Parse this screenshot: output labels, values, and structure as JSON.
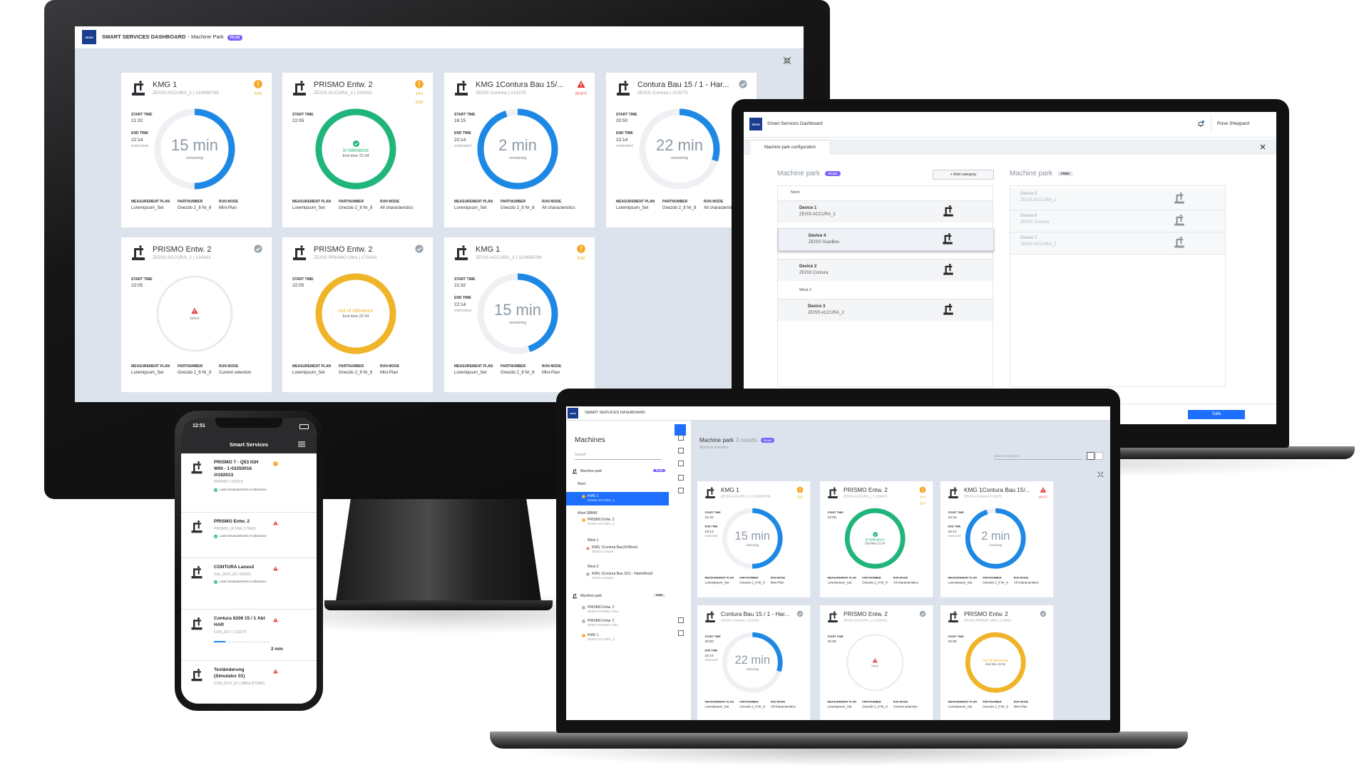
{
  "monitor": {
    "logo": "ZEISS",
    "title": "SMART SERVICES DASHBOARD",
    "title_suffix": "- Machine Park",
    "badge": "PLUS"
  },
  "card_labels": {
    "start": "START TIME",
    "end": "END TIME",
    "estimated": "estimated",
    "plan": "MEASUREMENT PLAN",
    "part": "PARTNUMBER",
    "run": "RUN MODE"
  },
  "cards": [
    {
      "name": "KMG 1",
      "sub": "ZEISS ACCURA_2 | 123456789",
      "status": "warning",
      "meta": [
        "5/20"
      ],
      "start": "21:32",
      "end": "22:14",
      "state": "running",
      "ring_text": "15 min",
      "ring_sub": "remaining",
      "ring_color": "#1e88e5",
      "progress": 0.5,
      "plan": "Loremipsum_Set",
      "part": "Gnezdo 2_8 Nr_8",
      "run": "Mini-Plan"
    },
    {
      "name": "PRISMO Entw. 2",
      "sub": "ZEISS ACCURA_2 | 220431",
      "status": "warning",
      "meta": [
        "14 h",
        "5/20"
      ],
      "start": "22:05",
      "state": "in_tolerance",
      "ring_text": "in tolerance",
      "ring_sub": "End time 22:34",
      "ring_color": "#20b57a",
      "progress": 1,
      "plan": "Loremipsum_Set",
      "part": "Gnezdo 2_8 Nr_8",
      "run": "All characteristics"
    },
    {
      "name": "KMG 1Contura Bau 15/...",
      "sub": "ZEISS Contura | 213275",
      "status": "error",
      "meta": [
        "29.8°C"
      ],
      "start": "16:15",
      "end": "22:14",
      "state": "running",
      "ring_text": "2 min",
      "ring_sub": "remaining",
      "ring_color": "#1e88e5",
      "progress": 0.95,
      "plan": "Loremipsum_Set",
      "part": "Gnezdo 2_8 Nr_8",
      "run": "All characteristics"
    },
    {
      "name": "Contura Bau 15 / 1 - Har...",
      "sub": "ZEISS Contura | 213275",
      "status": "ok",
      "meta": [],
      "start": "20:50",
      "end": "22:14",
      "state": "running",
      "ring_text": "22 min",
      "ring_sub": "remaining",
      "ring_color": "#1e88e5",
      "progress": 0.3,
      "plan": "Loremipsum_Set",
      "part": "Gnezdo 2_8 Nr_8",
      "run": "All characteristics"
    },
    {
      "name": "PRISMO Entw. 2",
      "sub": "ZEISS ACCURA_2 | 220431",
      "status": "ok",
      "meta": [],
      "start": "22:05",
      "state": "failed",
      "ring_text": "failed",
      "ring_color": "#e6e8eb",
      "progress": 0,
      "plan": "Loremipsum_Set",
      "part": "Gnezdo 2_8 Nr_8",
      "run": "Current selection"
    },
    {
      "name": "PRISMO Entw. 2",
      "sub": "ZEISS PRISMO Ultra | 170431",
      "status": "ok",
      "meta": [],
      "start": "22:05",
      "state": "out_of_tolerance",
      "ring_text": "out of tolerance",
      "ring_sub": "End time 22:34",
      "ring_color": "#f0b429",
      "progress": 1,
      "plan": "Loremipsum_Set",
      "part": "Gnezdo 2_8 Nr_8",
      "run": "Mini-Plan"
    },
    {
      "name": "KMG 1",
      "sub": "ZEISS ACCURA_2 | 123456789",
      "status": "warning",
      "meta": [
        "5/20"
      ],
      "start": "21:32",
      "end": "22:14",
      "state": "running",
      "ring_text": "15 min",
      "ring_sub": "remaining",
      "ring_color": "#1e88e5",
      "progress": 0.45,
      "plan": "Loremipsum_Set",
      "part": "Gnezdo 2_8 Nr_8",
      "run": "Mini-Plan"
    }
  ],
  "config": {
    "logo": "ZEISS",
    "title": "Smart Services Dashboard",
    "user": "Rose Sheppard",
    "tab": "Machine park configuration",
    "left_title": "Machine park",
    "left_badge": "PLUS",
    "add": "+ Add category",
    "groups": [
      {
        "name": "Nord",
        "devices": [
          {
            "name": "Device 1",
            "model": "ZEISS ACCURA_2"
          },
          {
            "name": "Device 4",
            "model": "ZEISS ScanBox",
            "dragging": true
          },
          {
            "name": "Device 2",
            "model": "ZEISS Contura"
          }
        ]
      },
      {
        "name": "West 2",
        "devices": [
          {
            "name": "Device 3",
            "model": "ZEISS ACCURA_2"
          }
        ]
      }
    ],
    "right_title": "Machine park",
    "right_badge": "FREE",
    "free_devices": [
      {
        "name": "Device 5",
        "model": "ZEISS ACCURA_2"
      },
      {
        "name": "Device 6",
        "model": "ZEISS Contura"
      },
      {
        "name": "Device 7",
        "model": "ZEISS ACCURA_2"
      }
    ],
    "save": "Safe"
  },
  "tablet": {
    "logo": "ZEISS",
    "title": "SMART SERVICES DASHBOARD",
    "sidebar_title": "Machines",
    "search": "Search",
    "tree": [
      {
        "label": "Machine park",
        "badge": "PLUS",
        "level": 0
      },
      {
        "label": "Nord",
        "level": 1
      },
      {
        "label": "KMG 1",
        "sub": "ZEISS ACCURA_2",
        "level": 2,
        "status": "warning",
        "selected": true
      },
      {
        "label": "West 3BMW",
        "level": 1
      },
      {
        "label": "PRISMO Entw. 2",
        "sub": "ZEISS ACCURA_2",
        "level": 2,
        "status": "warning"
      },
      {
        "label": "West 1",
        "level": 2
      },
      {
        "label": "KMG 1Contura Bau15/West1",
        "sub": "ZEISS Contura",
        "level": 3,
        "status": "error"
      },
      {
        "label": "West 2",
        "level": 2
      },
      {
        "label": "KMG 1Contura Bau 15/1 - HarteWest2",
        "sub": "ZEISS Contura",
        "level": 3,
        "status": "ok"
      },
      {
        "label": "Machine park",
        "badge": "FREE",
        "level": 0
      },
      {
        "label": "PRISMO Entw. 2",
        "sub": "ZEISS PRISMO Ultra",
        "level": 2,
        "status": "ok"
      },
      {
        "label": "PRISMO Entw. 2",
        "sub": "ZEISS PRISMO Ultra",
        "level": 2,
        "status": "ok"
      },
      {
        "label": "KMG 1",
        "sub": "ZEISS ACCURA_2",
        "level": 2,
        "status": "warning"
      }
    ],
    "main_title": "Machine park",
    "results": "3 results",
    "badge": "PLUS",
    "subtitle": "Machine overview",
    "search_machines": "Search machines"
  },
  "phone": {
    "time": "12:51",
    "title": "Smart Services",
    "items": [
      {
        "name": "PRISMO 7 - Q53 IGH WIN - 1-03250016 /#192013",
        "sub": "PRISMO | 192013",
        "status": "warning",
        "note": "Last measurement in tolerance"
      },
      {
        "name": "PRISMO Entw. 2",
        "sub": "PRISMO_ULTRA | 170431",
        "status": "error",
        "note": "Last measurement in tolerance"
      },
      {
        "name": "CONTURA Lanex2",
        "sub": "Con_2014_02 | 330601",
        "status": "error",
        "note": "Last measurement in tolerance"
      },
      {
        "name": "Contura 6206 15 / 1 Abt HAR",
        "sub": "CON_2017 | 213275",
        "status": "error",
        "remaining": "2 min",
        "progress": 0.2
      },
      {
        "name": "Teständerung (Simulator 01)",
        "sub": "CON_2014_02 | SIMULATOR01",
        "status": "error"
      }
    ]
  }
}
